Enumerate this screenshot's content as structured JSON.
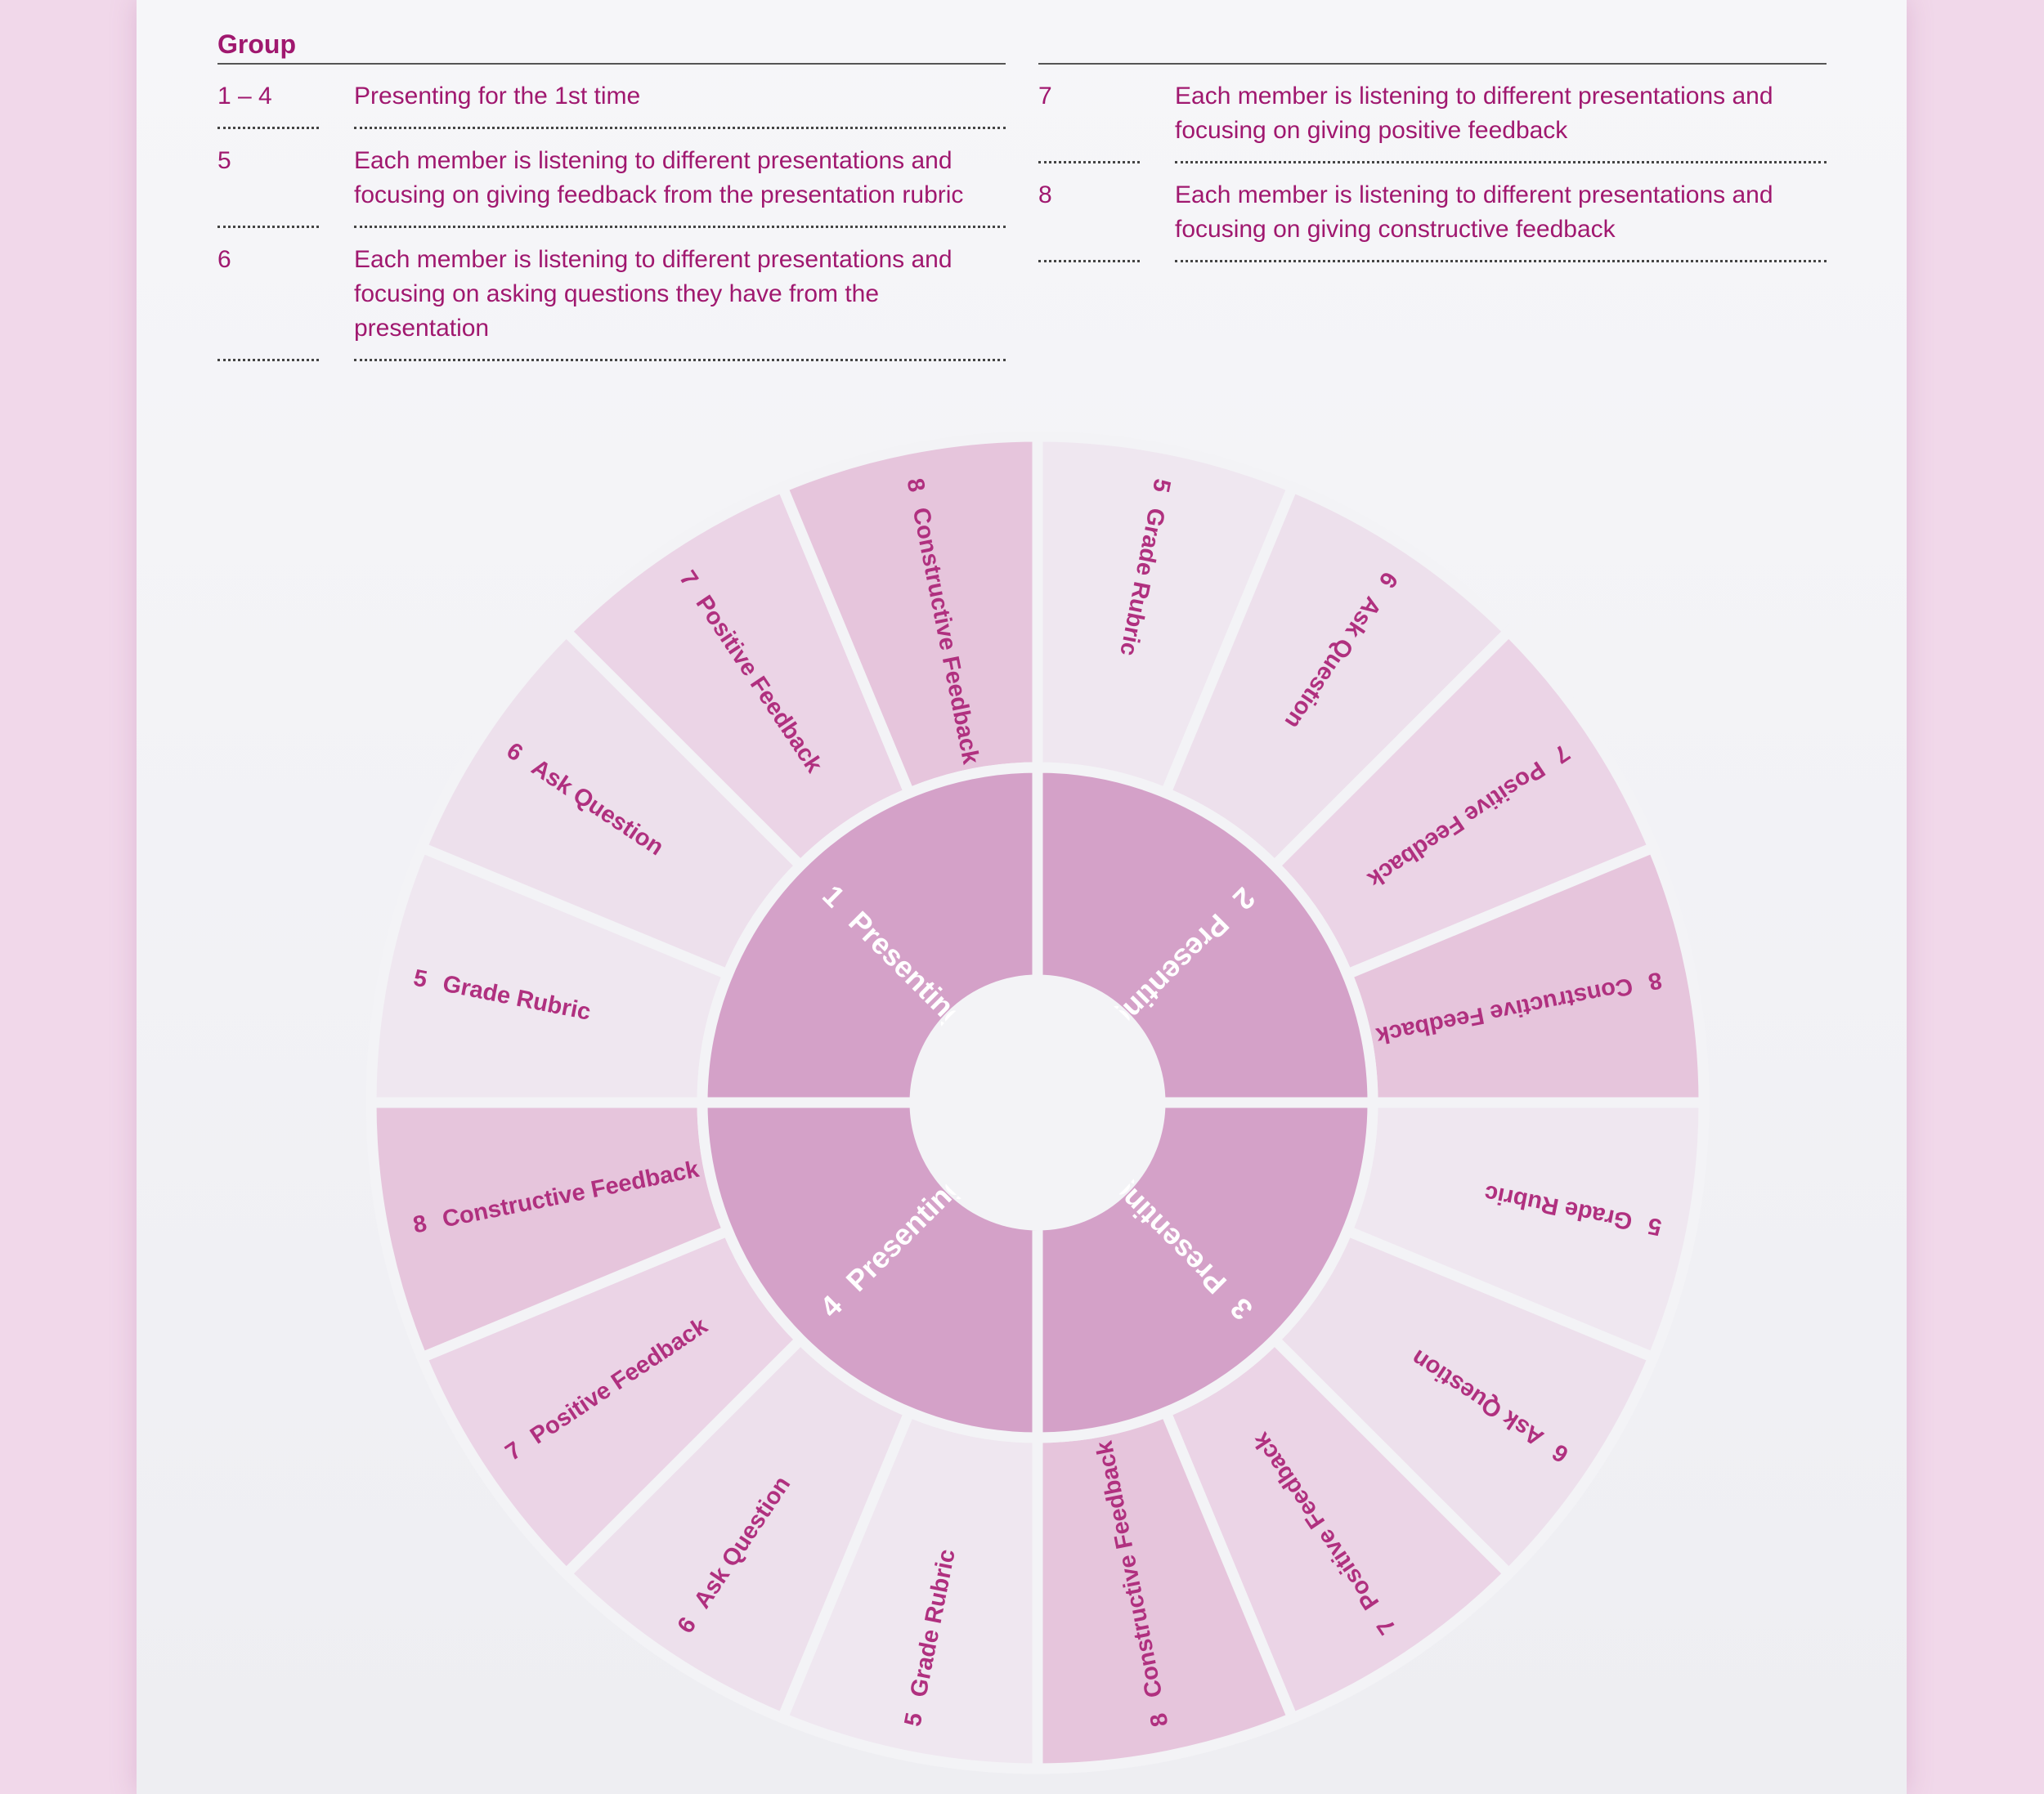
{
  "legend": {
    "title": "Group",
    "columns": [
      [
        {
          "group": "1 – 4",
          "text": "Presenting for the 1st time"
        },
        {
          "group": "5",
          "text": "Each member is listening to different presentations and focusing on giving feedback from the presentation rubric"
        },
        {
          "group": "6",
          "text": "Each member is listening to different presentations and focusing on asking questions they have from the presentation"
        }
      ],
      [
        {
          "group": "7",
          "text": "Each member is listening to different presentations and focusing on giving positive feedback"
        },
        {
          "group": "8",
          "text": "Each member is listening to different presentations and focusing on giving constructive feedback"
        }
      ]
    ]
  },
  "wheel": {
    "inner": [
      {
        "number": "2",
        "label": "Presenting"
      },
      {
        "number": "3",
        "label": "Presenting"
      },
      {
        "number": "4",
        "label": "Presenting"
      },
      {
        "number": "1",
        "label": "Presenting"
      }
    ],
    "outer": [
      {
        "number": "5",
        "label": "Grade Rubric"
      },
      {
        "number": "6",
        "label": "Ask Question"
      },
      {
        "number": "7",
        "label": "Positive Feedback"
      },
      {
        "number": "8",
        "label": "Constructive Feedback"
      },
      {
        "number": "5",
        "label": "Grade Rubric"
      },
      {
        "number": "6",
        "label": "Ask Question"
      },
      {
        "number": "7",
        "label": "Positive Feedback"
      },
      {
        "number": "8",
        "label": "Constructive Feedback"
      },
      {
        "number": "5",
        "label": "Grade Rubric"
      },
      {
        "number": "6",
        "label": "Ask Question"
      },
      {
        "number": "7",
        "label": "Positive Feedback"
      },
      {
        "number": "8",
        "label": "Constructive Feedback"
      },
      {
        "number": "5",
        "label": "Grade Rubric"
      },
      {
        "number": "6",
        "label": "Ask Question"
      },
      {
        "number": "7",
        "label": "Positive Feedback"
      },
      {
        "number": "8",
        "label": "Constructive Feedback"
      }
    ]
  }
}
